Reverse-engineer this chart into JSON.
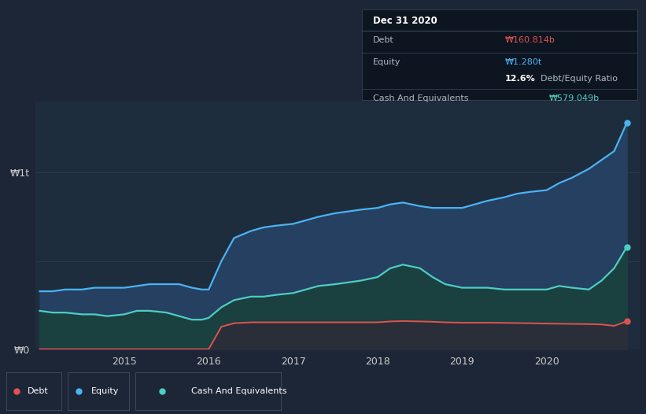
{
  "background_color": "#1c2636",
  "plot_bg_color": "#1e2d3d",
  "ylabel_top": "₩1t",
  "ylabel_bottom": "₩0",
  "x_ticks": [
    "2015",
    "2016",
    "2017",
    "2018",
    "2019",
    "2020"
  ],
  "debt_color": "#e05252",
  "equity_color": "#4ab3f4",
  "cash_color": "#4ecdc4",
  "equity_fill": "#254060",
  "cash_fill": "#1a4040",
  "debt_fill": "#2a2e38",
  "grid_color": "#2e3f52",
  "tooltip_bg": "#0d1520",
  "tooltip_border": "#3a4a5a",
  "x": [
    2014.0,
    2014.15,
    2014.3,
    2014.5,
    2014.65,
    2014.8,
    2015.0,
    2015.15,
    2015.3,
    2015.5,
    2015.65,
    2015.8,
    2015.92,
    2016.0,
    2016.15,
    2016.3,
    2016.5,
    2016.65,
    2016.8,
    2017.0,
    2017.15,
    2017.3,
    2017.5,
    2017.65,
    2017.8,
    2018.0,
    2018.15,
    2018.3,
    2018.5,
    2018.65,
    2018.8,
    2019.0,
    2019.15,
    2019.3,
    2019.5,
    2019.65,
    2019.8,
    2020.0,
    2020.15,
    2020.3,
    2020.5,
    2020.65,
    2020.8,
    2020.95
  ],
  "equity": [
    0.33,
    0.33,
    0.34,
    0.34,
    0.35,
    0.35,
    0.35,
    0.36,
    0.37,
    0.37,
    0.37,
    0.35,
    0.34,
    0.34,
    0.5,
    0.63,
    0.67,
    0.69,
    0.7,
    0.71,
    0.73,
    0.75,
    0.77,
    0.78,
    0.79,
    0.8,
    0.82,
    0.83,
    0.81,
    0.8,
    0.8,
    0.8,
    0.82,
    0.84,
    0.86,
    0.88,
    0.89,
    0.9,
    0.94,
    0.97,
    1.02,
    1.07,
    1.12,
    1.28
  ],
  "cash": [
    0.22,
    0.21,
    0.21,
    0.2,
    0.2,
    0.19,
    0.2,
    0.22,
    0.22,
    0.21,
    0.19,
    0.17,
    0.17,
    0.18,
    0.24,
    0.28,
    0.3,
    0.3,
    0.31,
    0.32,
    0.34,
    0.36,
    0.37,
    0.38,
    0.39,
    0.41,
    0.46,
    0.48,
    0.46,
    0.41,
    0.37,
    0.35,
    0.35,
    0.35,
    0.34,
    0.34,
    0.34,
    0.34,
    0.36,
    0.35,
    0.34,
    0.39,
    0.46,
    0.58
  ],
  "debt": [
    0.004,
    0.004,
    0.004,
    0.004,
    0.004,
    0.004,
    0.004,
    0.004,
    0.004,
    0.004,
    0.004,
    0.004,
    0.004,
    0.004,
    0.13,
    0.15,
    0.155,
    0.155,
    0.155,
    0.155,
    0.155,
    0.155,
    0.155,
    0.155,
    0.155,
    0.155,
    0.16,
    0.162,
    0.16,
    0.158,
    0.155,
    0.153,
    0.153,
    0.153,
    0.152,
    0.151,
    0.15,
    0.148,
    0.147,
    0.146,
    0.145,
    0.143,
    0.135,
    0.161
  ],
  "ylim": [
    0,
    1.4
  ],
  "xlim": [
    2013.95,
    2021.1
  ],
  "legend_items": [
    {
      "label": "Debt",
      "color": "#e05252"
    },
    {
      "label": "Equity",
      "color": "#4ab3f4"
    },
    {
      "label": "Cash And Equivalents",
      "color": "#4ecdc4"
    }
  ]
}
